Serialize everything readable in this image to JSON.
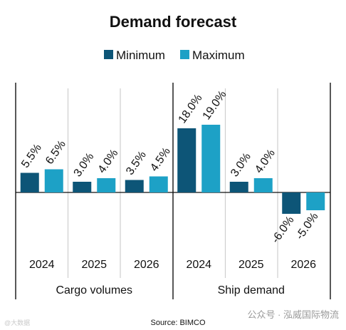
{
  "chart_data": {
    "type": "bar",
    "title": "Demand forecast",
    "legend_position": "top",
    "series": [
      {
        "name": "Minimum",
        "color": "#0d5577"
      },
      {
        "name": "Maximum",
        "color": "#1da1c6"
      }
    ],
    "groups": [
      {
        "name": "Cargo volumes",
        "categories": [
          "2024",
          "2025",
          "2026"
        ],
        "min_values": [
          5.5,
          3.0,
          3.5
        ],
        "max_values": [
          6.5,
          4.0,
          4.5
        ],
        "min_labels": [
          "5.5%",
          "3.0%",
          "3.5%"
        ],
        "max_labels": [
          "6.5%",
          "4.0%",
          "4.5%"
        ]
      },
      {
        "name": "Ship demand",
        "categories": [
          "2024",
          "2025",
          "2026"
        ],
        "min_values": [
          18.0,
          3.0,
          -6.0
        ],
        "max_values": [
          19.0,
          4.0,
          -5.0
        ],
        "min_labels": [
          "18.0%",
          "3.0%",
          "-6.0%"
        ],
        "max_labels": [
          "19.0%",
          "4.0%",
          "-5.0%"
        ]
      }
    ],
    "ylim": [
      -10,
      30
    ],
    "grid": "vertical separators between categories"
  },
  "source": "Source: BIMCO",
  "watermark_right": "公众号 · 泓威国际物流",
  "watermark_left": "@大数据"
}
